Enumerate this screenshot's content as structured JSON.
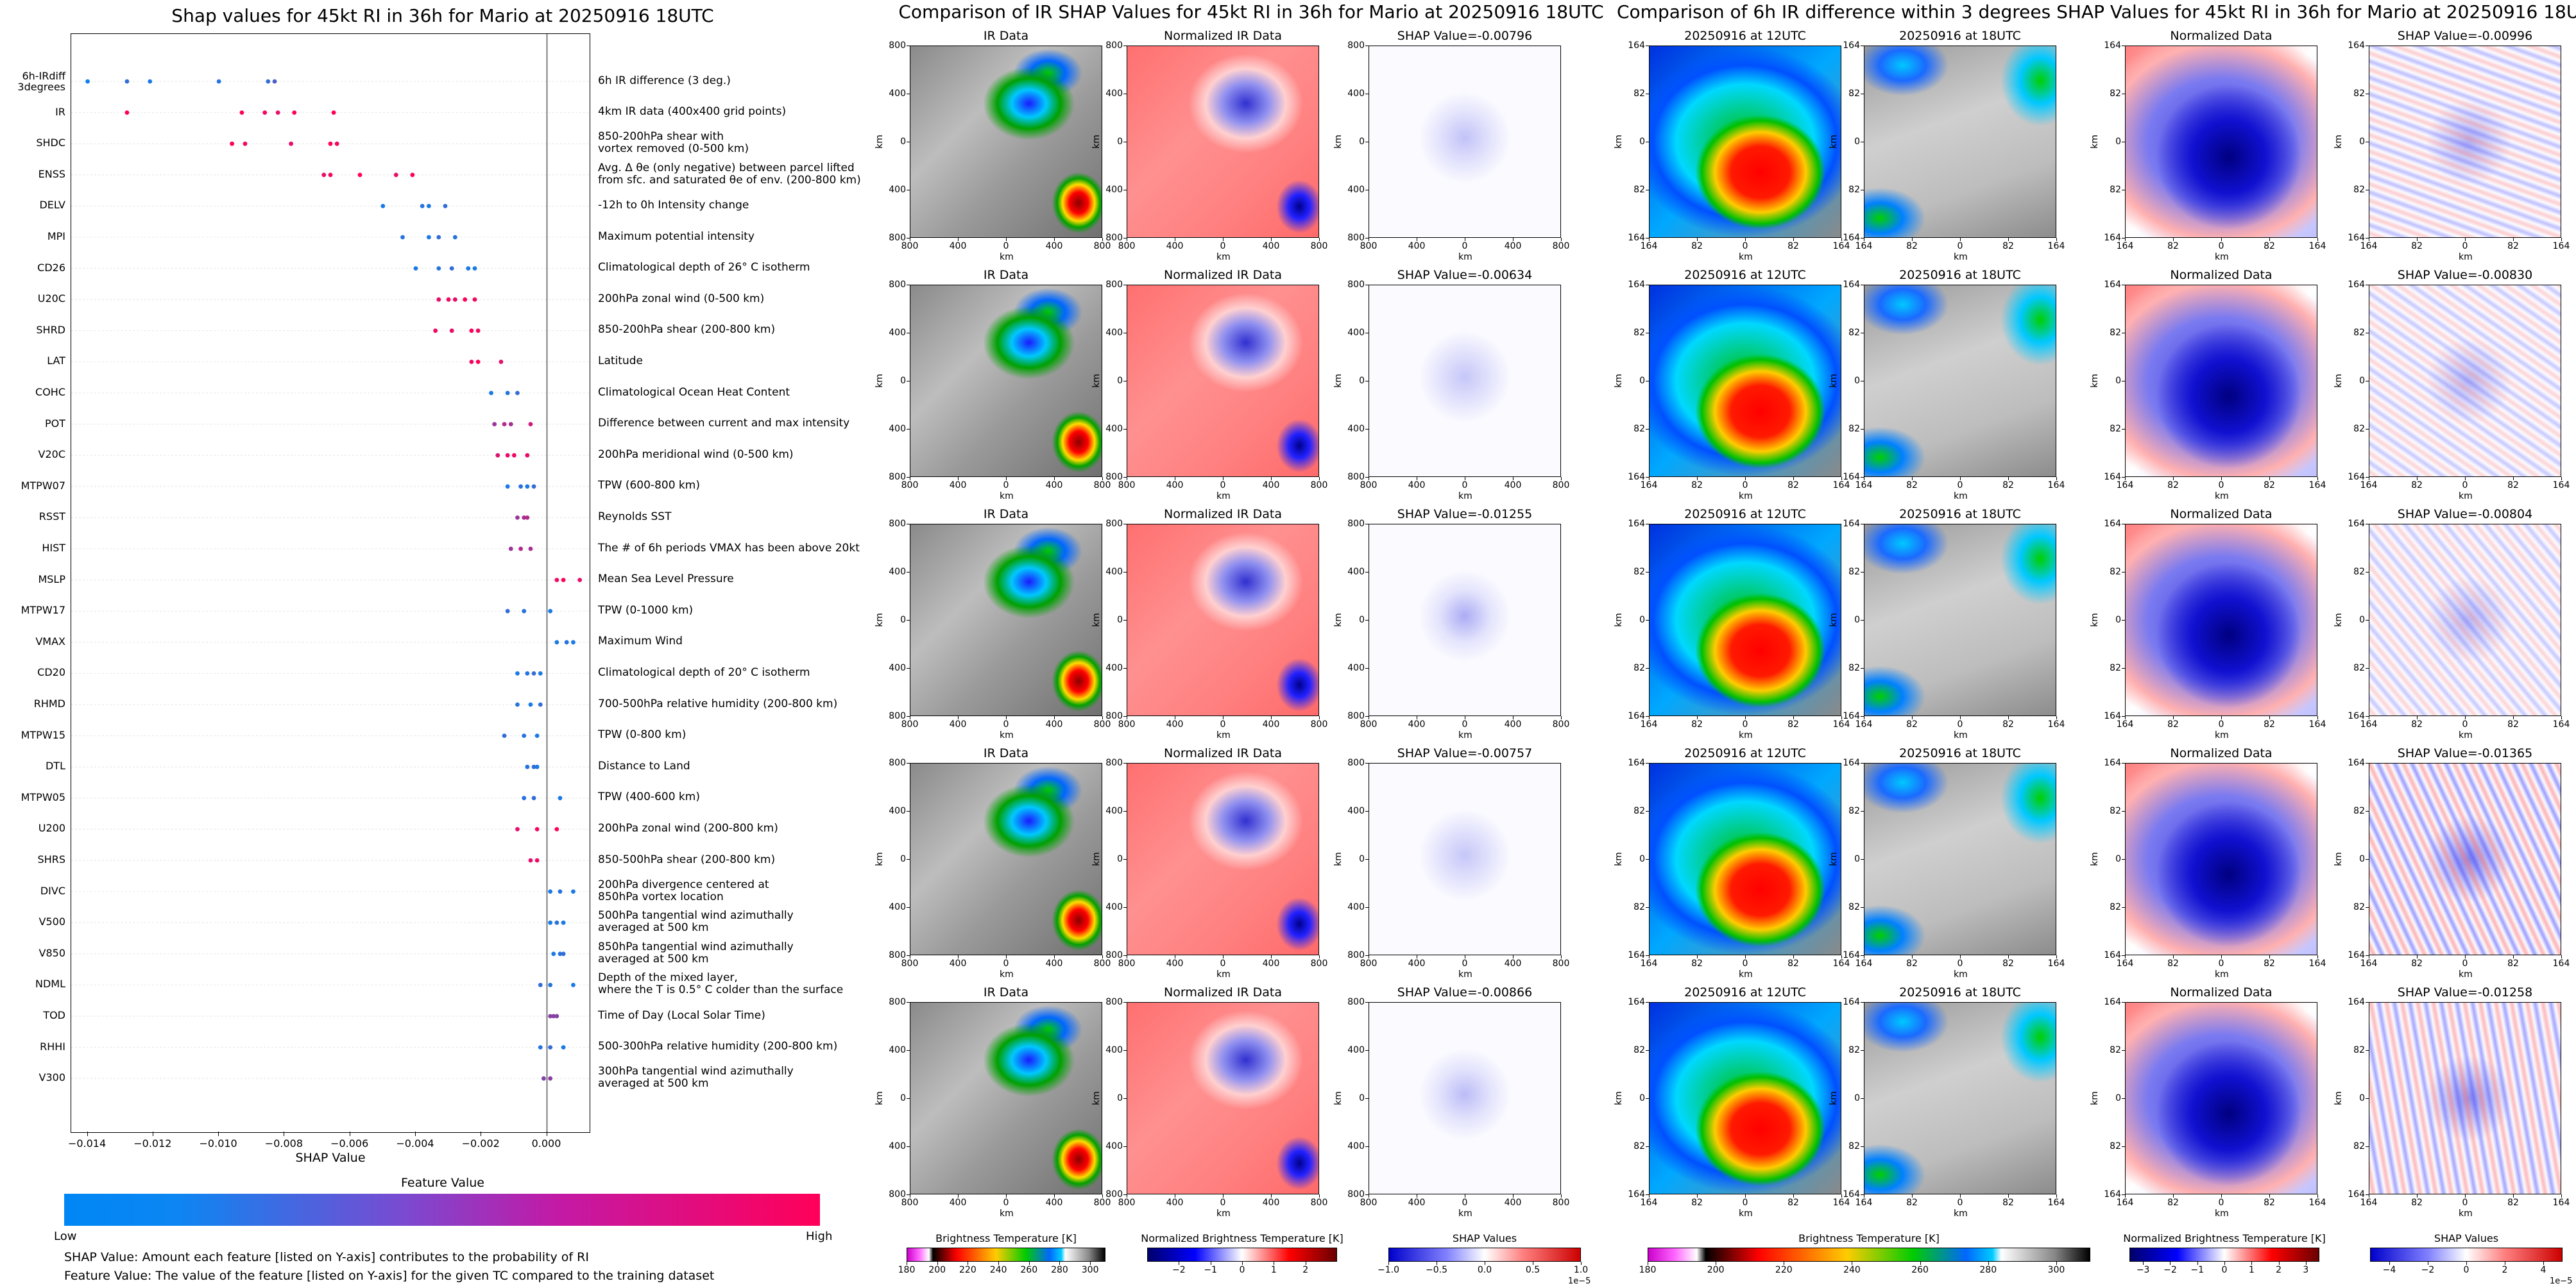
{
  "colors": {
    "low": "#0087f5",
    "high": "#ff0059",
    "grid": "#e6e6e6"
  },
  "shap_figure": {
    "title": "Shap values for 45kt RI in 36h for Mario at 20250916 18UTC",
    "xlabel": "SHAP Value",
    "colorbar": {
      "title": "Feature Value",
      "low_label": "Low",
      "high_label": "High"
    },
    "notes": [
      "SHAP Value: Amount each feature [listed on Y-axis] contributes to the probability of RI",
      "Feature Value: The value of the feature [listed on Y-axis] for the given TC compared to the training dataset"
    ]
  },
  "chart_data": [
    {
      "type": "scatter",
      "title": "Shap values for 45kt RI in 36h for Mario at 20250916 18UTC",
      "xlabel": "SHAP Value",
      "xlim": [
        -0.0145,
        0.0013
      ],
      "xticks": [
        "−0.014",
        "−0.012",
        "−0.010",
        "−0.008",
        "−0.006",
        "−0.004",
        "−0.002",
        "0.000"
      ],
      "xtick_values": [
        -0.014,
        -0.012,
        -0.01,
        -0.008,
        -0.006,
        -0.004,
        -0.002,
        0.0
      ],
      "grid": "horizontal",
      "features": [
        {
          "name": "6h-IRdiff 3degrees",
          "desc": "6h IR difference (3 deg.)",
          "points": [
            [
              -0.014,
              0.05
            ],
            [
              -0.0128,
              0.2
            ],
            [
              -0.0121,
              0.1
            ],
            [
              -0.01,
              0.15
            ],
            [
              -0.0085,
              0.2
            ],
            [
              -0.0083,
              0.3
            ]
          ]
        },
        {
          "name": "IR",
          "desc": "4km IR data (400x400 grid points)",
          "points": [
            [
              -0.0128,
              1.0
            ],
            [
              -0.0093,
              1.0
            ],
            [
              -0.0086,
              0.95
            ],
            [
              -0.0082,
              0.9
            ],
            [
              -0.0077,
              1.0
            ],
            [
              -0.0065,
              1.0
            ]
          ]
        },
        {
          "name": "SHDC",
          "desc": "850-200hPa shear with\nvortex removed (0-500 km)",
          "points": [
            [
              -0.0096,
              1.0
            ],
            [
              -0.0092,
              0.95
            ],
            [
              -0.0078,
              0.9
            ],
            [
              -0.0066,
              1.0
            ],
            [
              -0.0064,
              0.95
            ]
          ]
        },
        {
          "name": "ENSS",
          "desc": "Avg. Δ θe (only negative) between parcel lifted\nfrom sfc. and saturated θe of env. (200-800 km)",
          "points": [
            [
              -0.0068,
              0.9
            ],
            [
              -0.0066,
              0.95
            ],
            [
              -0.0057,
              1.0
            ],
            [
              -0.0046,
              0.9
            ],
            [
              -0.0041,
              1.0
            ]
          ]
        },
        {
          "name": "DELV",
          "desc": "-12h to 0h Intensity change",
          "points": [
            [
              -0.005,
              0.1
            ],
            [
              -0.0038,
              0.15
            ],
            [
              -0.0036,
              0.1
            ],
            [
              -0.0031,
              0.2
            ]
          ]
        },
        {
          "name": "MPI",
          "desc": "Maximum potential intensity",
          "points": [
            [
              -0.0044,
              0.15
            ],
            [
              -0.0036,
              0.1
            ],
            [
              -0.0033,
              0.2
            ],
            [
              -0.0028,
              0.15
            ]
          ]
        },
        {
          "name": "CD26",
          "desc": "Climatological depth of 26° C isotherm",
          "points": [
            [
              -0.004,
              0.1
            ],
            [
              -0.0033,
              0.15
            ],
            [
              -0.0029,
              0.2
            ],
            [
              -0.0024,
              0.1
            ],
            [
              -0.0022,
              0.1
            ]
          ]
        },
        {
          "name": "U20C",
          "desc": "200hPa zonal wind (0-500 km)",
          "points": [
            [
              -0.0033,
              0.9
            ],
            [
              -0.003,
              0.95
            ],
            [
              -0.0028,
              0.9
            ],
            [
              -0.0025,
              1.0
            ],
            [
              -0.0022,
              0.95
            ]
          ]
        },
        {
          "name": "SHRD",
          "desc": "850-200hPa shear (200-800 km)",
          "points": [
            [
              -0.0034,
              0.95
            ],
            [
              -0.0029,
              0.9
            ],
            [
              -0.0023,
              1.0
            ],
            [
              -0.0021,
              0.95
            ]
          ]
        },
        {
          "name": "LAT",
          "desc": "Latitude",
          "points": [
            [
              -0.0023,
              0.95
            ],
            [
              -0.0021,
              1.0
            ],
            [
              -0.0014,
              0.9
            ]
          ]
        },
        {
          "name": "COHC",
          "desc": "Climatological Ocean Heat Content",
          "points": [
            [
              -0.0017,
              0.1
            ],
            [
              -0.0012,
              0.15
            ],
            [
              -0.0009,
              0.2
            ]
          ]
        },
        {
          "name": "POT",
          "desc": "Difference between current and max intensity",
          "points": [
            [
              -0.0016,
              0.6
            ],
            [
              -0.0013,
              0.7
            ],
            [
              -0.0011,
              0.65
            ],
            [
              -0.0005,
              0.8
            ]
          ]
        },
        {
          "name": "V20C",
          "desc": "200hPa meridional wind (0-500 km)",
          "points": [
            [
              -0.0015,
              0.85
            ],
            [
              -0.0012,
              0.9
            ],
            [
              -0.001,
              0.95
            ],
            [
              -0.0006,
              0.9
            ]
          ]
        },
        {
          "name": "MTPW07",
          "desc": "TPW (600-800 km)",
          "points": [
            [
              -0.0012,
              0.1
            ],
            [
              -0.0008,
              0.15
            ],
            [
              -0.0006,
              0.1
            ],
            [
              -0.0004,
              0.2
            ]
          ]
        },
        {
          "name": "RSST",
          "desc": "Reynolds SST",
          "points": [
            [
              -0.0009,
              0.6
            ],
            [
              -0.0007,
              0.65
            ],
            [
              -0.0006,
              0.7
            ]
          ]
        },
        {
          "name": "HIST",
          "desc": "The # of 6h periods VMAX has been above 20kt",
          "points": [
            [
              -0.0011,
              0.6
            ],
            [
              -0.0008,
              0.7
            ],
            [
              -0.0005,
              0.65
            ]
          ]
        },
        {
          "name": "MSLP",
          "desc": "Mean Sea Level Pressure",
          "points": [
            [
              0.0003,
              0.95
            ],
            [
              0.0005,
              1.0
            ],
            [
              0.001,
              0.9
            ]
          ]
        },
        {
          "name": "MTPW17",
          "desc": "TPW (0-1000 km)",
          "points": [
            [
              -0.0012,
              0.2
            ],
            [
              -0.0007,
              0.15
            ],
            [
              0.0001,
              0.1
            ]
          ]
        },
        {
          "name": "VMAX",
          "desc": "Maximum Wind",
          "points": [
            [
              0.0003,
              0.1
            ],
            [
              0.0006,
              0.15
            ],
            [
              0.0008,
              0.1
            ]
          ]
        },
        {
          "name": "CD20",
          "desc": "Climatological depth of 20° C isotherm",
          "points": [
            [
              -0.0009,
              0.1
            ],
            [
              -0.0006,
              0.15
            ],
            [
              -0.0004,
              0.2
            ],
            [
              -0.0002,
              0.1
            ]
          ]
        },
        {
          "name": "RHMD",
          "desc": "700-500hPa relative humidity (200-800 km)",
          "points": [
            [
              -0.0009,
              0.15
            ],
            [
              -0.0005,
              0.1
            ],
            [
              -0.0002,
              0.2
            ]
          ]
        },
        {
          "name": "MTPW15",
          "desc": "TPW (0-800 km)",
          "points": [
            [
              -0.0013,
              0.2
            ],
            [
              -0.0007,
              0.15
            ],
            [
              -0.0003,
              0.1
            ]
          ]
        },
        {
          "name": "DTL",
          "desc": "Distance to Land",
          "points": [
            [
              -0.0006,
              0.15
            ],
            [
              -0.0004,
              0.2
            ],
            [
              -0.0003,
              0.1
            ]
          ]
        },
        {
          "name": "MTPW05",
          "desc": "TPW (400-600 km)",
          "points": [
            [
              -0.0007,
              0.15
            ],
            [
              -0.0004,
              0.2
            ],
            [
              0.0004,
              0.1
            ]
          ]
        },
        {
          "name": "U200",
          "desc": "200hPa zonal wind (200-800 km)",
          "points": [
            [
              -0.0009,
              0.9
            ],
            [
              -0.0003,
              0.95
            ],
            [
              0.0003,
              1.0
            ]
          ]
        },
        {
          "name": "SHRS",
          "desc": "850-500hPa shear (200-800 km)",
          "points": [
            [
              -0.0005,
              0.9
            ],
            [
              -0.0003,
              0.95
            ]
          ]
        },
        {
          "name": "DIVC",
          "desc": "200hPa divergence centered at\n850hPa vortex location",
          "points": [
            [
              0.0001,
              0.1
            ],
            [
              0.0004,
              0.15
            ],
            [
              0.0008,
              0.1
            ]
          ]
        },
        {
          "name": "V500",
          "desc": "500hPa tangential wind azimuthally\naveraged at 500 km",
          "points": [
            [
              0.0001,
              0.1
            ],
            [
              0.0003,
              0.15
            ],
            [
              0.0005,
              0.1
            ]
          ]
        },
        {
          "name": "V850",
          "desc": "850hPa tangential wind azimuthally\naveraged at 500 km",
          "points": [
            [
              0.0002,
              0.1
            ],
            [
              0.0004,
              0.15
            ],
            [
              0.0005,
              0.2
            ]
          ]
        },
        {
          "name": "NDML",
          "desc": "Depth of the mixed layer,\nwhere the T is 0.5° C colder than the surface",
          "points": [
            [
              -0.0002,
              0.2
            ],
            [
              0.0001,
              0.15
            ],
            [
              0.0008,
              0.1
            ]
          ]
        },
        {
          "name": "TOD",
          "desc": "Time of Day (Local Solar Time)",
          "points": [
            [
              0.0001,
              0.5
            ],
            [
              0.0002,
              0.55
            ],
            [
              0.0003,
              0.5
            ]
          ]
        },
        {
          "name": "RHHI",
          "desc": "500-300hPa relative humidity (200-800 km)",
          "points": [
            [
              -0.0002,
              0.15
            ],
            [
              0.0001,
              0.2
            ],
            [
              0.0005,
              0.1
            ]
          ]
        },
        {
          "name": "V300",
          "desc": "300hPa tangential wind azimuthally\naveraged at 500 km",
          "points": [
            [
              -0.0001,
              0.5
            ],
            [
              0.0001,
              0.55
            ]
          ]
        }
      ]
    },
    {
      "type": "heatmap",
      "title": "Comparison of IR SHAP Values for 45kt RI in 36h for Mario at 20250916 18UTC",
      "columns": [
        "IR Data",
        "Normalized IR Data",
        "SHAP Value"
      ],
      "x_ticks": [
        "800",
        "400",
        "0",
        "400",
        "800"
      ],
      "y_ticks": [
        "800",
        "400",
        "0",
        "400",
        "800"
      ],
      "axis_unit": "km",
      "shap_values": [
        "-0.00796",
        "-0.00634",
        "-0.01255",
        "-0.00757",
        "-0.00866"
      ],
      "colorbars": [
        {
          "title": "Brightness Temperature [K]",
          "ticks": [
            "180",
            "200",
            "220",
            "240",
            "260",
            "280",
            "300"
          ],
          "range": [
            180,
            310
          ]
        },
        {
          "title": "Normalized Brightness Temperature [K]",
          "ticks": [
            "−2",
            "−1",
            "0",
            "1",
            "2"
          ],
          "range": [
            -3,
            3
          ]
        },
        {
          "title": "SHAP Values",
          "ticks": [
            "−1.0",
            "−0.5",
            "0.0",
            "0.5",
            "1.0"
          ],
          "range": [
            -1,
            1
          ],
          "scale_label": "1e−5"
        }
      ]
    },
    {
      "type": "heatmap",
      "title": "Comparison of 6h IR difference within 3 degrees SHAP Values for 45kt RI in 36h for Mario at 20250916 18UTC",
      "columns": [
        "20250916 at 12UTC",
        "20250916 at 18UTC",
        "Normalized Data",
        "SHAP Value"
      ],
      "x_ticks": [
        "164",
        "82",
        "0",
        "82",
        "164"
      ],
      "y_ticks": [
        "164",
        "82",
        "0",
        "82",
        "164"
      ],
      "axis_unit": "km",
      "shap_values": [
        "-0.00996",
        "-0.00830",
        "-0.00804",
        "-0.01365",
        "-0.01258"
      ],
      "colorbars": [
        {
          "title": "Brightness Temperature [K]",
          "ticks": [
            "180",
            "200",
            "220",
            "240",
            "260",
            "280",
            "300"
          ],
          "range": [
            180,
            310
          ]
        },
        {
          "title": "Normalized Brightness Temperature [K]",
          "ticks": [
            "−3",
            "−2",
            "−1",
            "0",
            "1",
            "2",
            "3"
          ],
          "range": [
            -3.5,
            3.5
          ]
        },
        {
          "title": "SHAP Values",
          "ticks": [
            "−4",
            "−2",
            "0",
            "2",
            "4"
          ],
          "range": [
            -5,
            5
          ],
          "scale_label": "1e−5"
        }
      ]
    }
  ]
}
